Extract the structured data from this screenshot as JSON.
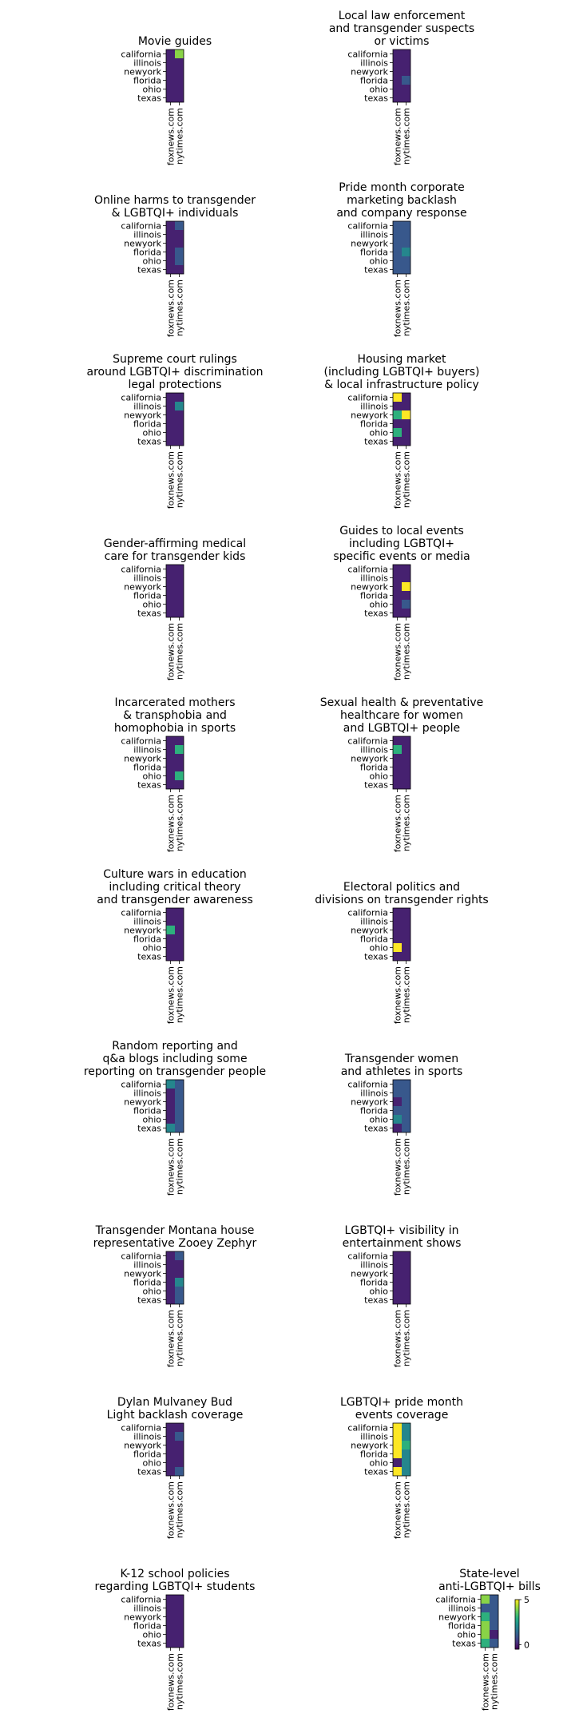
{
  "figure": {
    "type": "heatmap-grid",
    "colormap": [
      "#440154",
      "#472d7b",
      "#3b528b",
      "#2c728e",
      "#21918c",
      "#28ae80",
      "#5ec962",
      "#addc30",
      "#fde725"
    ]
  },
  "colorbar": {
    "vmin": -0.5,
    "vmax": 5,
    "ticks": [
      0,
      5
    ],
    "tick_labels": [
      "0",
      "5"
    ]
  },
  "chart_data": [
    {
      "type": "heatmap",
      "title": "Movie guides",
      "rows": [
        "california",
        "illinois",
        "newyork",
        "florida",
        "ohio",
        "texas"
      ],
      "columns": [
        "foxnews.com",
        "nytimes.com"
      ],
      "values": [
        [
          0,
          4
        ],
        [
          0,
          0
        ],
        [
          0,
          0
        ],
        [
          0,
          0
        ],
        [
          0,
          0
        ],
        [
          0,
          0
        ]
      ]
    },
    {
      "type": "heatmap",
      "title": "Local law enforcement\nand transgender suspects\nor victims",
      "rows": [
        "california",
        "illinois",
        "newyork",
        "florida",
        "ohio",
        "texas"
      ],
      "columns": [
        "foxnews.com",
        "nytimes.com"
      ],
      "values": [
        [
          0,
          0
        ],
        [
          0,
          0
        ],
        [
          0,
          0
        ],
        [
          0,
          1
        ],
        [
          0,
          0
        ],
        [
          0,
          0
        ]
      ]
    },
    {
      "type": "heatmap",
      "title": "Online harms to transgender\n& LGBTQI+ individuals",
      "rows": [
        "california",
        "illinois",
        "newyork",
        "florida",
        "ohio",
        "texas"
      ],
      "columns": [
        "foxnews.com",
        "nytimes.com"
      ],
      "values": [
        [
          0,
          1
        ],
        [
          0,
          0
        ],
        [
          0,
          0
        ],
        [
          0,
          1
        ],
        [
          0,
          1
        ],
        [
          0,
          0
        ]
      ]
    },
    {
      "type": "heatmap",
      "title": "Pride month corporate\nmarketing backlash\nand company response",
      "rows": [
        "california",
        "illinois",
        "newyork",
        "florida",
        "ohio",
        "texas"
      ],
      "columns": [
        "foxnews.com",
        "nytimes.com"
      ],
      "values": [
        [
          1,
          1
        ],
        [
          1,
          1
        ],
        [
          1,
          1
        ],
        [
          1,
          2
        ],
        [
          1,
          1
        ],
        [
          1,
          1
        ]
      ]
    },
    {
      "type": "heatmap",
      "title": "Supreme court rulings\naround LGBTQI+ discrimination\nlegal protections",
      "rows": [
        "california",
        "illinois",
        "newyork",
        "florida",
        "ohio",
        "texas"
      ],
      "columns": [
        "foxnews.com",
        "nytimes.com"
      ],
      "values": [
        [
          0,
          0
        ],
        [
          0,
          2
        ],
        [
          0,
          0
        ],
        [
          0,
          0
        ],
        [
          0,
          0
        ],
        [
          0,
          0
        ]
      ]
    },
    {
      "type": "heatmap",
      "title": "Housing market\n(including LGBTQI+ buyers)\n& local infrastructure policy",
      "rows": [
        "california",
        "illinois",
        "newyork",
        "florida",
        "ohio",
        "texas"
      ],
      "columns": [
        "foxnews.com",
        "nytimes.com"
      ],
      "values": [
        [
          5,
          0
        ],
        [
          0,
          0
        ],
        [
          3,
          5
        ],
        [
          0,
          0
        ],
        [
          3,
          0
        ],
        [
          0,
          0
        ]
      ]
    },
    {
      "type": "heatmap",
      "title": "Gender-affirming medical\ncare for transgender kids",
      "rows": [
        "california",
        "illinois",
        "newyork",
        "florida",
        "ohio",
        "texas"
      ],
      "columns": [
        "foxnews.com",
        "nytimes.com"
      ],
      "values": [
        [
          0,
          0
        ],
        [
          0,
          0
        ],
        [
          0,
          0
        ],
        [
          0,
          0
        ],
        [
          0,
          0
        ],
        [
          0,
          0
        ]
      ]
    },
    {
      "type": "heatmap",
      "title": "Guides to local events\nincluding LGBTQI+\nspecific events or media",
      "rows": [
        "california",
        "illinois",
        "newyork",
        "florida",
        "ohio",
        "texas"
      ],
      "columns": [
        "foxnews.com",
        "nytimes.com"
      ],
      "values": [
        [
          0,
          0
        ],
        [
          0,
          0
        ],
        [
          0,
          5
        ],
        [
          0,
          0
        ],
        [
          0,
          1
        ],
        [
          0,
          0
        ]
      ]
    },
    {
      "type": "heatmap",
      "title": "Incarcerated mothers\n& transphobia and\nhomophobia in sports",
      "rows": [
        "california",
        "illinois",
        "newyork",
        "florida",
        "ohio",
        "texas"
      ],
      "columns": [
        "foxnews.com",
        "nytimes.com"
      ],
      "values": [
        [
          0,
          0
        ],
        [
          0,
          3
        ],
        [
          0,
          0
        ],
        [
          0,
          0
        ],
        [
          0,
          3
        ],
        [
          0,
          0
        ]
      ]
    },
    {
      "type": "heatmap",
      "title": "Sexual health & preventative\nhealthcare for women\nand LGBTQI+ people",
      "rows": [
        "california",
        "illinois",
        "newyork",
        "florida",
        "ohio",
        "texas"
      ],
      "columns": [
        "foxnews.com",
        "nytimes.com"
      ],
      "values": [
        [
          0,
          0
        ],
        [
          3,
          0
        ],
        [
          0,
          0
        ],
        [
          0,
          0
        ],
        [
          0,
          0
        ],
        [
          0,
          0
        ]
      ]
    },
    {
      "type": "heatmap",
      "title": "Culture wars in education\nincluding critical theory\nand transgender awareness",
      "rows": [
        "california",
        "illinois",
        "newyork",
        "florida",
        "ohio",
        "texas"
      ],
      "columns": [
        "foxnews.com",
        "nytimes.com"
      ],
      "values": [
        [
          0,
          0
        ],
        [
          0,
          0
        ],
        [
          3,
          0
        ],
        [
          0,
          0
        ],
        [
          0,
          0
        ],
        [
          0,
          0
        ]
      ]
    },
    {
      "type": "heatmap",
      "title": "Electoral politics and\ndivisions on transgender rights",
      "rows": [
        "california",
        "illinois",
        "newyork",
        "florida",
        "ohio",
        "texas"
      ],
      "columns": [
        "foxnews.com",
        "nytimes.com"
      ],
      "values": [
        [
          0,
          0
        ],
        [
          0,
          0
        ],
        [
          0,
          0
        ],
        [
          0,
          0
        ],
        [
          5,
          0
        ],
        [
          0,
          0
        ]
      ]
    },
    {
      "type": "heatmap",
      "title": "Random reporting and\nq&a blogs including some\nreporting on transgender people",
      "rows": [
        "california",
        "illinois",
        "newyork",
        "florida",
        "ohio",
        "texas"
      ],
      "columns": [
        "foxnews.com",
        "nytimes.com"
      ],
      "values": [
        [
          2,
          1
        ],
        [
          0,
          1
        ],
        [
          0,
          1
        ],
        [
          0,
          1
        ],
        [
          0,
          1
        ],
        [
          2,
          1
        ]
      ]
    },
    {
      "type": "heatmap",
      "title": "Transgender women\nand athletes in sports",
      "rows": [
        "california",
        "illinois",
        "newyork",
        "florida",
        "ohio",
        "texas"
      ],
      "columns": [
        "foxnews.com",
        "nytimes.com"
      ],
      "values": [
        [
          1,
          1
        ],
        [
          1,
          1
        ],
        [
          0,
          1
        ],
        [
          1,
          1
        ],
        [
          2,
          1
        ],
        [
          0,
          1
        ]
      ]
    },
    {
      "type": "heatmap",
      "title": "Transgender Montana house\nrepresentative Zooey Zephyr",
      "rows": [
        "california",
        "illinois",
        "newyork",
        "florida",
        "ohio",
        "texas"
      ],
      "columns": [
        "foxnews.com",
        "nytimes.com"
      ],
      "values": [
        [
          0,
          1
        ],
        [
          0,
          0
        ],
        [
          0,
          0
        ],
        [
          0,
          2
        ],
        [
          0,
          1
        ],
        [
          0,
          1
        ]
      ]
    },
    {
      "type": "heatmap",
      "title": "LGBTQI+ visibility in\nentertainment shows",
      "rows": [
        "california",
        "illinois",
        "newyork",
        "florida",
        "ohio",
        "texas"
      ],
      "columns": [
        "foxnews.com",
        "nytimes.com"
      ],
      "values": [
        [
          0,
          0
        ],
        [
          0,
          0
        ],
        [
          0,
          0
        ],
        [
          0,
          0
        ],
        [
          0,
          0
        ],
        [
          0,
          0
        ]
      ]
    },
    {
      "type": "heatmap",
      "title": "Dylan Mulvaney Bud\nLight backlash coverage",
      "rows": [
        "california",
        "illinois",
        "newyork",
        "florida",
        "ohio",
        "texas"
      ],
      "columns": [
        "foxnews.com",
        "nytimes.com"
      ],
      "values": [
        [
          0,
          0
        ],
        [
          0,
          1
        ],
        [
          0,
          0
        ],
        [
          0,
          0
        ],
        [
          0,
          0
        ],
        [
          0,
          1
        ]
      ]
    },
    {
      "type": "heatmap",
      "title": "LGBTQI+ pride month\nevents coverage",
      "rows": [
        "california",
        "illinois",
        "newyork",
        "florida",
        "ohio",
        "texas"
      ],
      "columns": [
        "foxnews.com",
        "nytimes.com"
      ],
      "values": [
        [
          5,
          2
        ],
        [
          5,
          2
        ],
        [
          5,
          3
        ],
        [
          5,
          2
        ],
        [
          0,
          2
        ],
        [
          5,
          2
        ]
      ]
    },
    {
      "type": "heatmap",
      "title": "K-12 school policies\nregarding LGBTQI+ students",
      "rows": [
        "california",
        "illinois",
        "newyork",
        "florida",
        "ohio",
        "texas"
      ],
      "columns": [
        "foxnews.com",
        "nytimes.com"
      ],
      "values": [
        [
          0,
          0
        ],
        [
          0,
          0
        ],
        [
          0,
          0
        ],
        [
          0,
          0
        ],
        [
          0,
          0
        ],
        [
          0,
          0
        ]
      ]
    },
    {
      "type": "heatmap",
      "title": "State-level\nanti-LGBTQI+ bills",
      "rows": [
        "california",
        "illinois",
        "newyork",
        "florida",
        "ohio",
        "texas"
      ],
      "columns": [
        "foxnews.com",
        "nytimes.com"
      ],
      "values": [
        [
          4,
          1
        ],
        [
          1,
          1
        ],
        [
          3,
          1
        ],
        [
          4,
          1
        ],
        [
          4,
          0
        ],
        [
          3,
          1
        ]
      ]
    }
  ]
}
